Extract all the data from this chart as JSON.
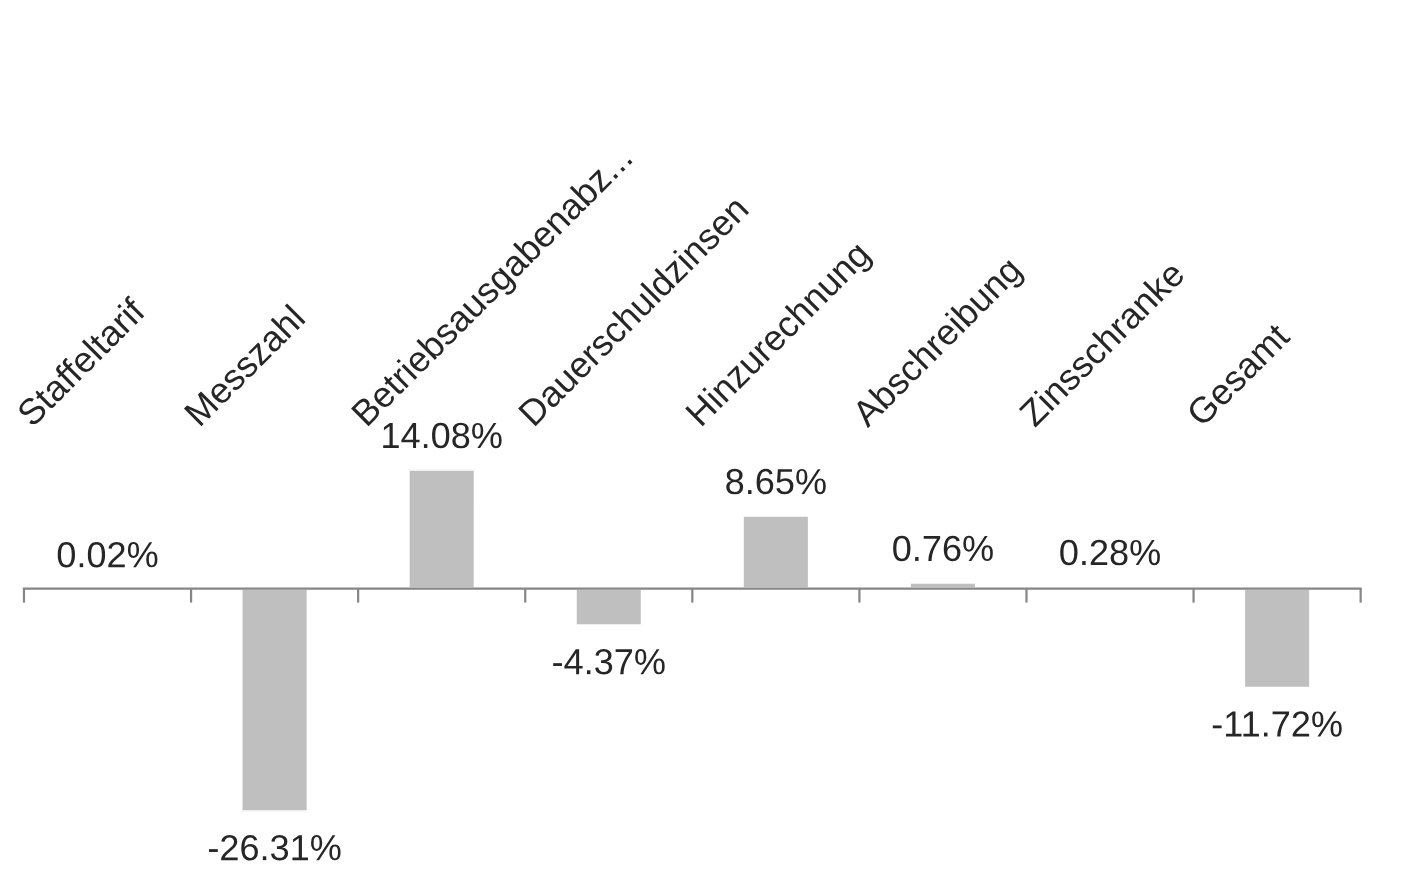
{
  "chart_data": {
    "type": "bar",
    "categories": [
      "Staffeltarif",
      "Messzahl",
      "Betriebsausgabenabz...",
      "Dauerschuldzinsen",
      "Hinzurechnung",
      "Abschreibung",
      "Zinsschranke",
      "Gesamt"
    ],
    "values": [
      0.02,
      -26.31,
      14.08,
      -4.37,
      8.65,
      0.76,
      0.28,
      -11.72
    ],
    "value_labels": [
      "0.02%",
      "-26.31%",
      "14.08%",
      "-4.37%",
      "8.65%",
      "0.76%",
      "0.28%",
      "-11.72%"
    ],
    "color": "#bfbfbf"
  }
}
